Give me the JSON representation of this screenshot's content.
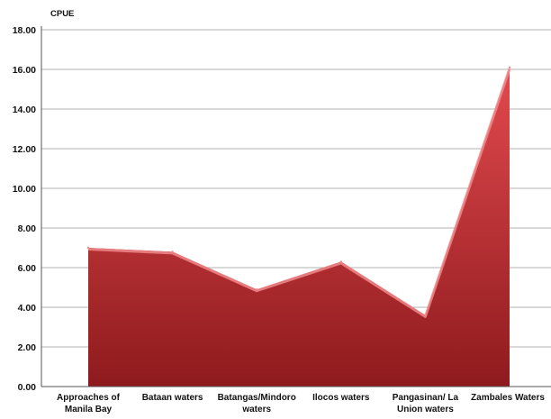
{
  "chart_data": {
    "type": "area",
    "title": "",
    "ylabel": "CPUE",
    "xlabel": "",
    "categories": [
      [
        "Approaches of",
        "Manila Bay"
      ],
      [
        "Bataan waters"
      ],
      [
        "Batangas/Mindoro",
        "waters"
      ],
      [
        "Ilocos waters"
      ],
      [
        "Pangasinan/ La",
        "Union waters"
      ],
      [
        "Zambales Waters"
      ]
    ],
    "values": [
      7.0,
      6.8,
      4.9,
      6.3,
      3.6,
      16.1
    ],
    "ylim": [
      0,
      18
    ],
    "yticks": [
      "0.00",
      "2.00",
      "4.00",
      "6.00",
      "8.00",
      "10.00",
      "12.00",
      "14.00",
      "16.00",
      "18.00"
    ],
    "grid": true,
    "legend": "none",
    "colors": {
      "fill_light": "#e24a4e",
      "fill_dark": "#8e1a1d",
      "edge": "#f08a8c",
      "grid": "#9a9a9a"
    }
  }
}
